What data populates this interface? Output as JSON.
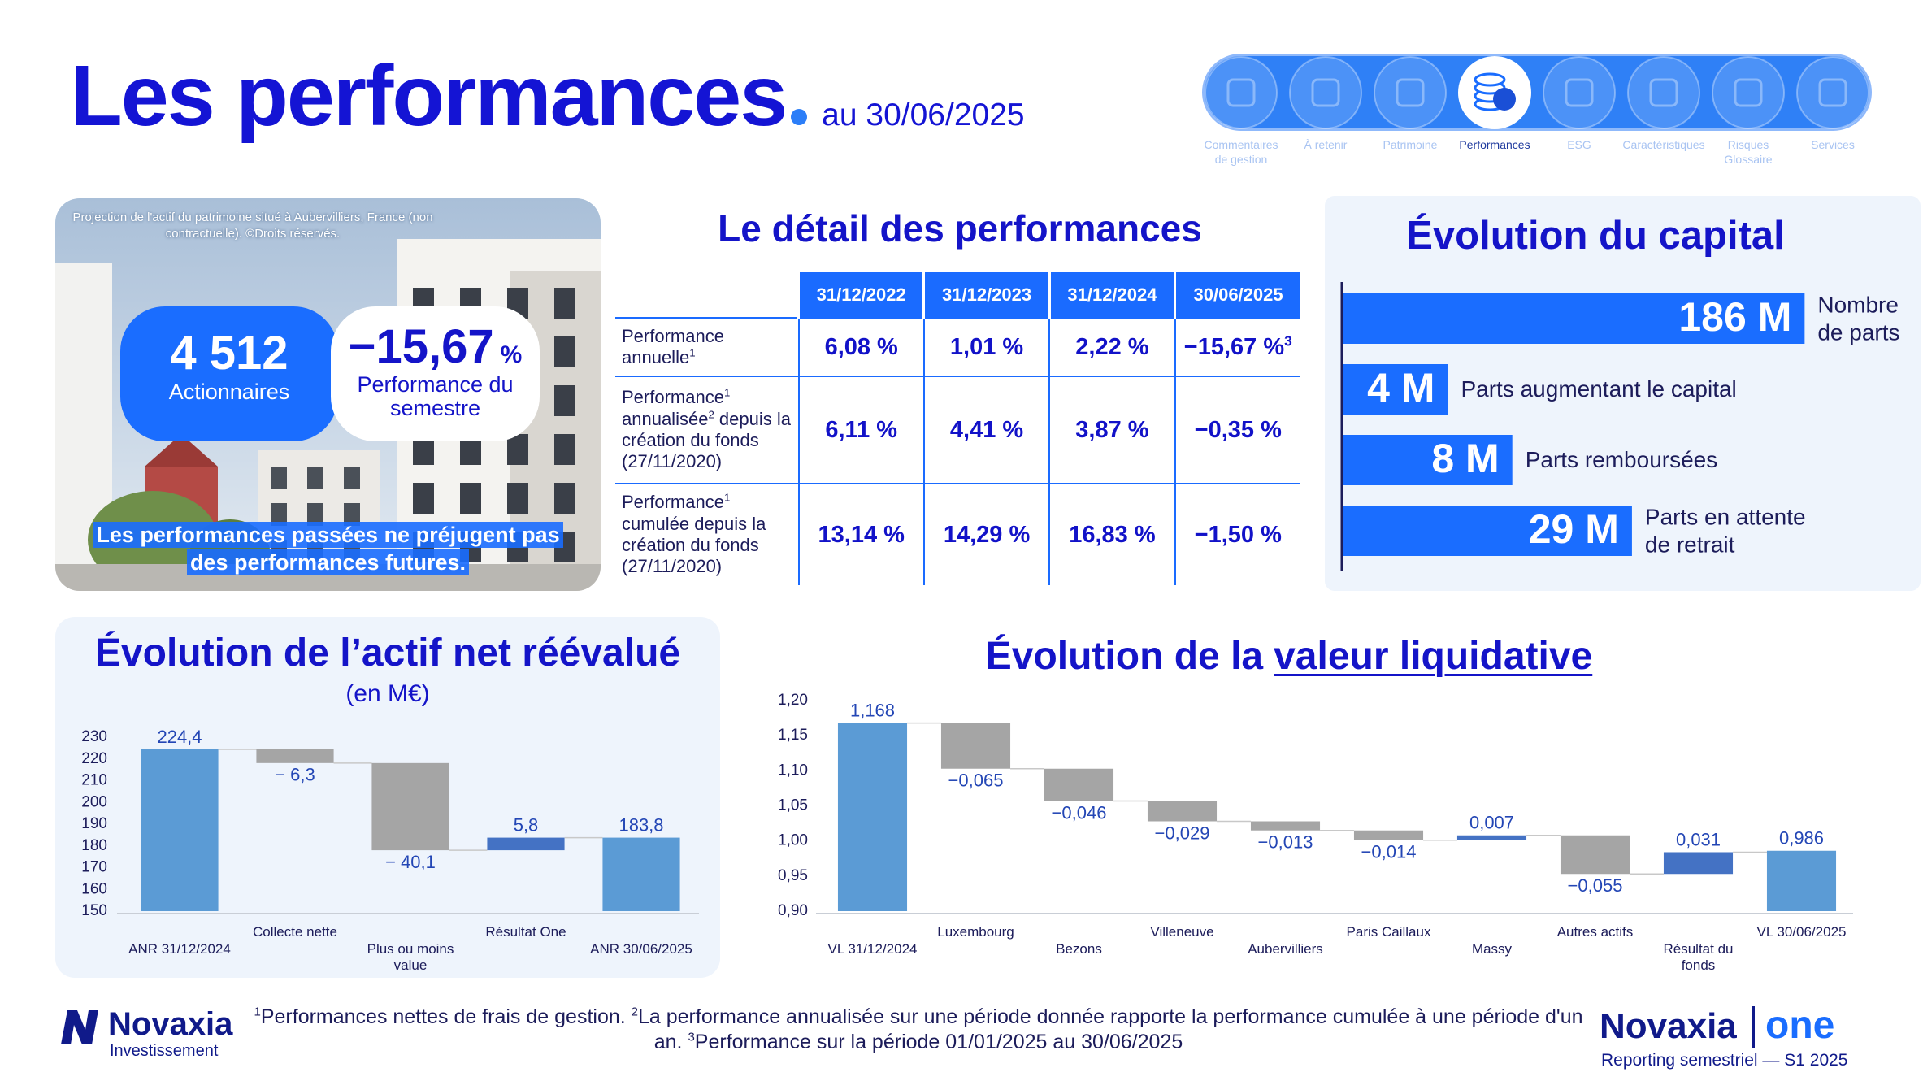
{
  "header": {
    "title": "Les performances",
    "date": "au 30/06/2025"
  },
  "nav": {
    "active": 3,
    "items": [
      {
        "label": "Commentaires de gestion"
      },
      {
        "label": "À retenir"
      },
      {
        "label": "Patrimoine"
      },
      {
        "label": "Performances"
      },
      {
        "label": "ESG"
      },
      {
        "label": "Caractéristiques"
      },
      {
        "label": "Risques Glossaire"
      },
      {
        "label": "Services"
      }
    ]
  },
  "photo": {
    "caption": "Projection de l'actif du patrimoine situé à Aubervilliers, France (non contractuelle). ©Droits réservés.",
    "shareholders": {
      "value": "4 512",
      "label": "Actionnaires"
    },
    "semester": {
      "value": "−15,67",
      "unit": "%",
      "label": "Performance du semestre"
    },
    "disclaimer": "Les performances passées ne préjugent pas des performances futures."
  },
  "table": {
    "title": "Le détail des performances",
    "columns": [
      "31/12/2022",
      "31/12/2023",
      "31/12/2024",
      "30/06/2025"
    ],
    "rows": [
      {
        "label": [
          "Performance annuelle",
          {
            "sup": "1"
          }
        ],
        "cells": [
          "6,08 %",
          "1,01 %",
          "2,22 %",
          [
            "−15,67 %",
            {
              "sup": "3"
            }
          ]
        ]
      },
      {
        "label": [
          "Performance",
          {
            "sup": "1"
          },
          " annualisée",
          {
            "sup": "2"
          },
          " depuis la création du fonds (27/11/2020)"
        ],
        "cells": [
          "6,11 %",
          "4,41 %",
          "3,87 %",
          "−0,35 %"
        ]
      },
      {
        "label": [
          "Performance",
          {
            "sup": "1"
          },
          " cumulée depuis la création du fonds (27/11/2020)"
        ],
        "cells": [
          "13,14 %",
          "14,29 %",
          "16,83 %",
          "−1,50 %"
        ]
      }
    ]
  },
  "chart_data": [
    {
      "type": "hbar",
      "title": "Évolution du capital",
      "categories": [
        "Nombre de parts",
        "Parts augmentant le capital",
        "Parts remboursées",
        "Parts en attente de retrait"
      ],
      "values": [
        186,
        4,
        8,
        29
      ],
      "value_labels": [
        "186 M",
        "4 M",
        "8 M",
        "29 M"
      ],
      "xlim": [
        1.3,
        300
      ],
      "log_scale": true,
      "color": "#1a6dff"
    },
    {
      "type": "waterfall",
      "title": "Évolution de l’actif net réévalué",
      "subtitle": "(en M€)",
      "categories": [
        "ANR 31/12/2024",
        "Collecte nette",
        "Plus ou moins value",
        "Résultat One",
        "ANR 30/06/2025"
      ],
      "values": [
        224.4,
        -6.3,
        -40.1,
        5.8,
        183.8
      ],
      "value_labels": [
        "224,4",
        "− 6,3",
        "− 40,1",
        "5,8",
        "183,8"
      ],
      "measure": [
        "absolute",
        "relative",
        "relative",
        "relative",
        "absolute"
      ],
      "colors": {
        "total": "#5b9bd5",
        "decrease": "#a5a5a5",
        "increase": "#4472c4"
      },
      "ylim": [
        150,
        230
      ],
      "yticks": [
        150,
        160,
        170,
        180,
        190,
        200,
        210,
        220,
        230
      ],
      "grid": false
    },
    {
      "type": "waterfall",
      "title": "Évolution de la",
      "title_link": "valeur liquidative",
      "categories": [
        "VL 31/12/2024",
        "Luxembourg",
        "Bezons",
        "Villeneuve",
        "Aubervilliers",
        "Paris Caillaux",
        "Massy",
        "Autres actifs",
        "Résultat du fonds",
        "VL 30/06/2025"
      ],
      "values": [
        1.168,
        -0.065,
        -0.046,
        -0.029,
        -0.013,
        -0.014,
        0.007,
        -0.055,
        0.031,
        0.986
      ],
      "value_labels": [
        "1,168",
        "−0,065",
        "−0,046",
        "−0,029",
        "−0,013",
        "−0,014",
        "0,007",
        "−0,055",
        "0,031",
        "0,986"
      ],
      "measure": [
        "absolute",
        "relative",
        "relative",
        "relative",
        "relative",
        "relative",
        "relative",
        "relative",
        "relative",
        "absolute"
      ],
      "colors": {
        "total": "#5b9bd5",
        "decrease": "#a5a5a5",
        "increase": "#4472c4"
      },
      "ylim": [
        0.9,
        1.2
      ],
      "yticks": [
        {
          "value": 0.9,
          "label": "0,90"
        },
        {
          "value": 0.95,
          "label": "0,95"
        },
        {
          "value": 1.0,
          "label": "1,00"
        },
        {
          "value": 1.05,
          "label": "1,05"
        },
        {
          "value": 1.1,
          "label": "1,10"
        },
        {
          "value": 1.15,
          "label": "1,15"
        },
        {
          "value": 1.2,
          "label": "1,20"
        }
      ],
      "grid": false
    }
  ],
  "footnotes": [
    {
      "sup": "1"
    },
    "Performances nettes de frais de gestion. ",
    {
      "sup": "2"
    },
    "La performance annualisée sur une période donnée rapporte la performance cumulée à une période d'un an. ",
    {
      "sup": "3"
    },
    "Performance sur la période 01/01/2025 au 30/06/2025"
  ],
  "logo": {
    "name": "Novaxia",
    "sub": "Investissement"
  },
  "brand": {
    "name": "Novaxia",
    "product": "one",
    "sub": "Reporting semestriel — S1 2025"
  }
}
